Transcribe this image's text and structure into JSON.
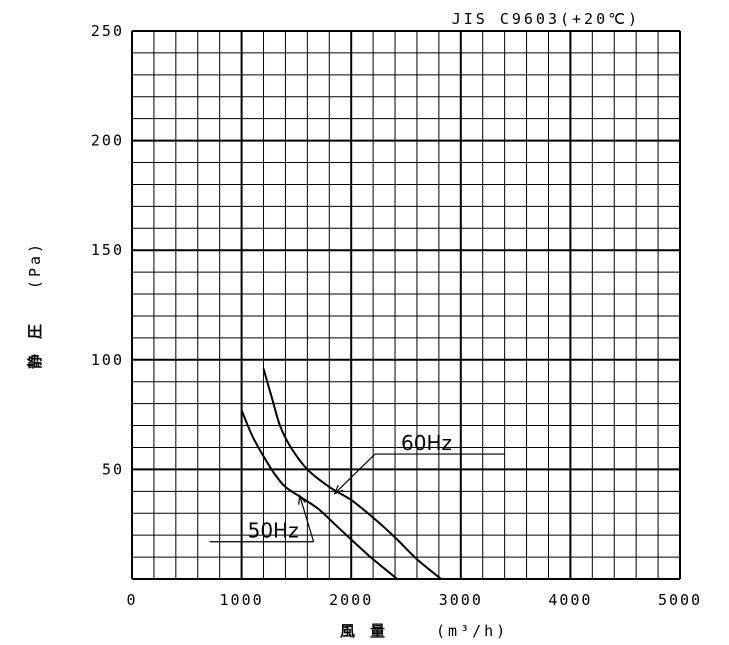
{
  "chart_data": {
    "type": "line",
    "title": "JIS C9603(+20℃)",
    "xlabel": "風 量",
    "xunit": "(m³/h)",
    "ylabel": "静 圧",
    "yunit": "(Pa)",
    "xlim": [
      0,
      5000
    ],
    "ylim": [
      0,
      250
    ],
    "x_major": 1000,
    "x_minor": 200,
    "y_major": 50,
    "y_minor": 10,
    "grid": true,
    "x_ticks": [
      "0",
      "1000",
      "2000",
      "3000",
      "4000",
      "5000"
    ],
    "y_ticks": [
      "50",
      "100",
      "150",
      "200",
      "250"
    ],
    "series": [
      {
        "name": "60Hz",
        "points": [
          [
            1200,
            96
          ],
          [
            1280,
            82
          ],
          [
            1350,
            70
          ],
          [
            1450,
            60
          ],
          [
            1600,
            50
          ],
          [
            1800,
            42
          ],
          [
            2000,
            36
          ],
          [
            2200,
            28
          ],
          [
            2400,
            19
          ],
          [
            2600,
            9
          ],
          [
            2820,
            0
          ]
        ]
      },
      {
        "name": "50Hz",
        "points": [
          [
            1000,
            77
          ],
          [
            1100,
            65
          ],
          [
            1200,
            56
          ],
          [
            1300,
            48
          ],
          [
            1400,
            42
          ],
          [
            1550,
            37
          ],
          [
            1700,
            32
          ],
          [
            1850,
            25
          ],
          [
            2000,
            18
          ],
          [
            2200,
            9
          ],
          [
            2420,
            0
          ]
        ]
      }
    ],
    "annotations": [
      {
        "text": "60Hz",
        "target": [
          1850,
          39
        ],
        "label_at": [
          2400,
          57
        ]
      },
      {
        "text": "50Hz",
        "target": [
          1530,
          38
        ],
        "label_at": [
          1000,
          17
        ]
      }
    ]
  }
}
